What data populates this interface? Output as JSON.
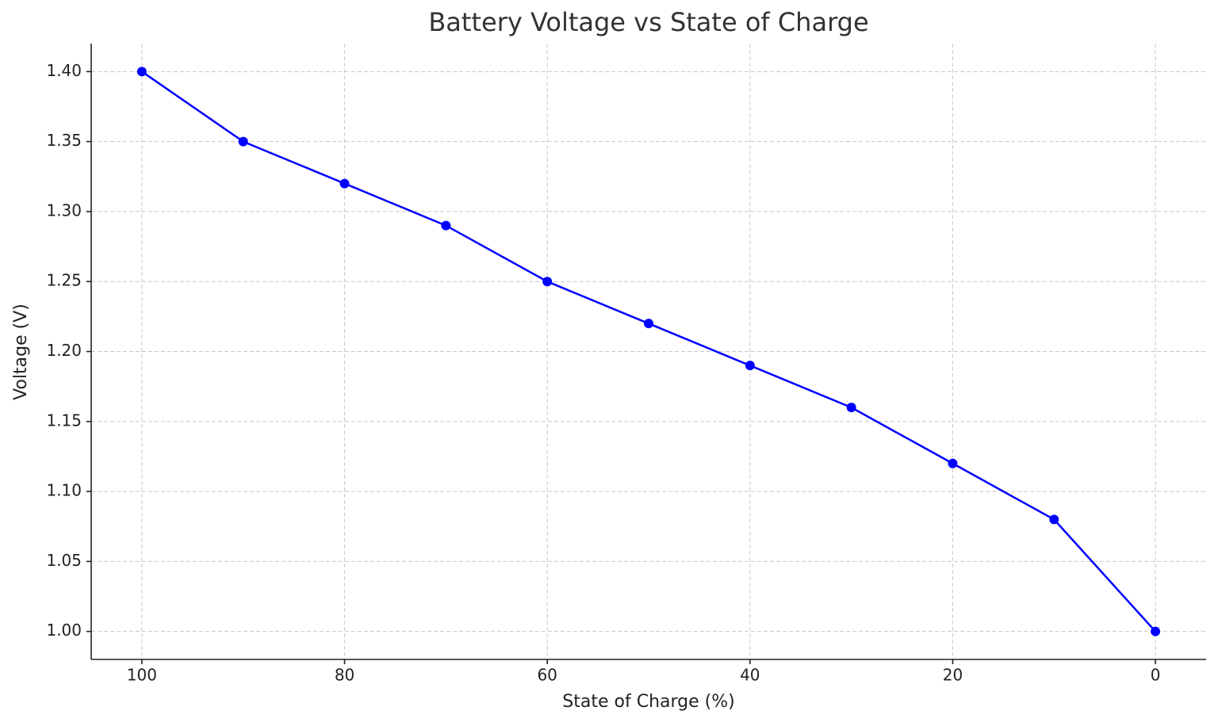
{
  "chart_data": {
    "type": "line",
    "title": "Battery Voltage vs State of Charge",
    "xlabel": "State of Charge (%)",
    "ylabel": "Voltage (V)",
    "x": [
      100,
      90,
      80,
      70,
      60,
      50,
      40,
      30,
      20,
      10,
      0
    ],
    "series": [
      {
        "name": "Voltage",
        "color": "#0000ff",
        "values": [
          1.4,
          1.35,
          1.32,
          1.29,
          1.25,
          1.22,
          1.19,
          1.16,
          1.12,
          1.08,
          1.0
        ]
      }
    ],
    "xlim": [
      105,
      -5
    ],
    "ylim": [
      0.98,
      1.42
    ],
    "xticks": [
      100,
      80,
      60,
      40,
      20,
      0
    ],
    "yticks": [
      {
        "value": 1.0,
        "label": "1.00"
      },
      {
        "value": 1.05,
        "label": "1.05"
      },
      {
        "value": 1.1,
        "label": "1.10"
      },
      {
        "value": 1.15,
        "label": "1.15"
      },
      {
        "value": 1.2,
        "label": "1.20"
      },
      {
        "value": 1.25,
        "label": "1.25"
      },
      {
        "value": 1.3,
        "label": "1.30"
      },
      {
        "value": 1.35,
        "label": "1.35"
      },
      {
        "value": 1.4,
        "label": "1.40"
      }
    ],
    "grid": true
  }
}
